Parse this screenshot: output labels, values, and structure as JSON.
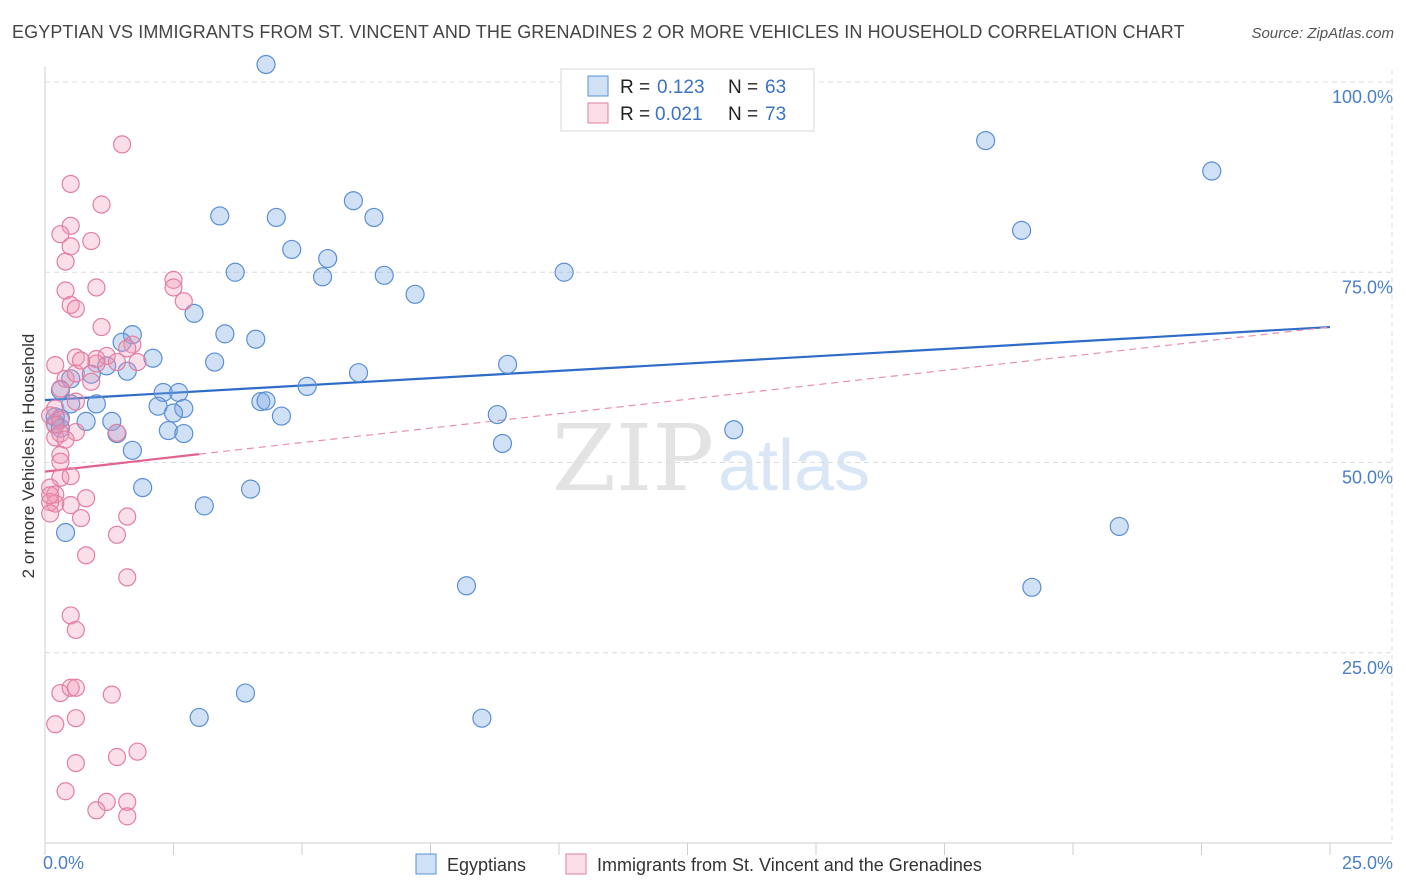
{
  "title": "EGYPTIAN VS IMMIGRANTS FROM ST. VINCENT AND THE GRENADINES 2 OR MORE VEHICLES IN HOUSEHOLD CORRELATION CHART",
  "source": "Source: ZipAtlas.com",
  "watermark": {
    "zip": "ZIP",
    "atlas": "atlas"
  },
  "chart_data": {
    "type": "scatter",
    "ylabel": "2 or more Vehicles in Household",
    "xlabel": "",
    "xlim": [
      0,
      25
    ],
    "ylim": [
      0,
      100
    ],
    "x_tick_labels": [
      "0.0%",
      "25.0%"
    ],
    "y_ticks": [
      25,
      50,
      75,
      100
    ],
    "y_tick_labels": [
      "25.0%",
      "50.0%",
      "75.0%",
      "100.0%"
    ],
    "legend_stats": [
      {
        "r_label": "R =",
        "r": "0.123",
        "n_label": "N =",
        "n": "63"
      },
      {
        "r_label": "R =",
        "r": "0.021",
        "n_label": "N =",
        "n": "73"
      }
    ],
    "series": [
      {
        "name": "Egyptians",
        "color": "#5b8fd6",
        "trend": {
          "x0": 0.0,
          "y0": 58.2,
          "x1": 25.0,
          "y1": 67.8
        },
        "points": [
          [
            4.3,
            102.3
          ],
          [
            18.3,
            92.3
          ],
          [
            22.7,
            88.3
          ],
          [
            6.0,
            84.4
          ],
          [
            3.4,
            82.4
          ],
          [
            4.5,
            82.2
          ],
          [
            6.4,
            82.2
          ],
          [
            4.8,
            78.0
          ],
          [
            19.0,
            80.5
          ],
          [
            5.5,
            76.8
          ],
          [
            3.7,
            75.0
          ],
          [
            5.4,
            74.4
          ],
          [
            6.6,
            74.6
          ],
          [
            10.1,
            75.0
          ],
          [
            7.2,
            72.1
          ],
          [
            2.9,
            69.6
          ],
          [
            1.7,
            66.8
          ],
          [
            3.5,
            66.9
          ],
          [
            4.1,
            66.2
          ],
          [
            1.5,
            65.8
          ],
          [
            2.1,
            63.7
          ],
          [
            3.3,
            63.2
          ],
          [
            9.0,
            62.9
          ],
          [
            1.2,
            62.7
          ],
          [
            0.9,
            61.6
          ],
          [
            1.6,
            62.0
          ],
          [
            6.1,
            61.8
          ],
          [
            0.5,
            61.0
          ],
          [
            5.1,
            60.0
          ],
          [
            0.3,
            59.5
          ],
          [
            2.3,
            59.2
          ],
          [
            2.6,
            59.2
          ],
          [
            4.2,
            58.0
          ],
          [
            4.3,
            58.1
          ],
          [
            0.5,
            57.7
          ],
          [
            1.0,
            57.7
          ],
          [
            2.2,
            57.4
          ],
          [
            2.7,
            57.1
          ],
          [
            2.5,
            56.5
          ],
          [
            4.6,
            56.1
          ],
          [
            8.8,
            56.3
          ],
          [
            0.3,
            55.8
          ],
          [
            0.8,
            55.4
          ],
          [
            1.3,
            55.4
          ],
          [
            0.2,
            55.1
          ],
          [
            2.4,
            54.2
          ],
          [
            2.7,
            53.8
          ],
          [
            1.4,
            53.8
          ],
          [
            13.4,
            54.3
          ],
          [
            8.9,
            52.5
          ],
          [
            1.7,
            51.6
          ],
          [
            1.9,
            46.7
          ],
          [
            4.0,
            46.5
          ],
          [
            3.1,
            44.3
          ],
          [
            0.4,
            40.8
          ],
          [
            20.9,
            41.6
          ],
          [
            8.2,
            33.8
          ],
          [
            19.2,
            33.6
          ],
          [
            3.9,
            19.7
          ],
          [
            3.0,
            16.5
          ],
          [
            8.5,
            16.4
          ],
          [
            0.2,
            56.0
          ],
          [
            0.3,
            54.5
          ]
        ]
      },
      {
        "name": "Immigrants from St. Vincent and the Grenadines",
        "color": "#e37ea2",
        "trend": {
          "x0": 0.0,
          "y0": 48.8,
          "x1": 3.0,
          "y1": 51.1
        },
        "trend_ext": {
          "x0": 3.0,
          "y0": 51.1,
          "x1": 25.0,
          "y1": 67.8
        },
        "points": [
          [
            1.5,
            91.8
          ],
          [
            0.5,
            86.6
          ],
          [
            1.1,
            83.9
          ],
          [
            0.5,
            81.1
          ],
          [
            0.3,
            80.0
          ],
          [
            0.5,
            78.4
          ],
          [
            0.9,
            79.1
          ],
          [
            0.4,
            76.4
          ],
          [
            2.5,
            74.0
          ],
          [
            2.5,
            73.0
          ],
          [
            1.0,
            73.0
          ],
          [
            0.4,
            72.6
          ],
          [
            2.7,
            71.2
          ],
          [
            0.5,
            70.7
          ],
          [
            0.6,
            70.2
          ],
          [
            1.1,
            67.8
          ],
          [
            1.7,
            65.5
          ],
          [
            1.2,
            64.0
          ],
          [
            0.6,
            63.8
          ],
          [
            1.0,
            63.6
          ],
          [
            1.0,
            63.0
          ],
          [
            1.6,
            65.0
          ],
          [
            1.8,
            63.2
          ],
          [
            1.4,
            63.2
          ],
          [
            0.2,
            62.8
          ],
          [
            0.4,
            61.0
          ],
          [
            0.6,
            61.7
          ],
          [
            0.3,
            59.7
          ],
          [
            0.6,
            58.0
          ],
          [
            0.2,
            57.1
          ],
          [
            0.1,
            56.2
          ],
          [
            0.3,
            55.6
          ],
          [
            0.2,
            54.9
          ],
          [
            0.6,
            54.0
          ],
          [
            0.2,
            53.3
          ],
          [
            0.3,
            53.8
          ],
          [
            0.4,
            53.0
          ],
          [
            1.4,
            53.9
          ],
          [
            0.3,
            51.0
          ],
          [
            0.3,
            50.1
          ],
          [
            0.3,
            48.0
          ],
          [
            0.5,
            48.2
          ],
          [
            0.1,
            46.7
          ],
          [
            0.2,
            45.8
          ],
          [
            0.8,
            45.3
          ],
          [
            0.2,
            44.6
          ],
          [
            0.1,
            44.8
          ],
          [
            0.5,
            44.4
          ],
          [
            0.1,
            43.3
          ],
          [
            0.7,
            42.7
          ],
          [
            1.6,
            42.9
          ],
          [
            1.4,
            40.5
          ],
          [
            0.8,
            37.8
          ],
          [
            1.6,
            34.9
          ],
          [
            0.5,
            29.9
          ],
          [
            0.6,
            28.0
          ],
          [
            0.3,
            19.7
          ],
          [
            0.5,
            20.4
          ],
          [
            0.6,
            20.4
          ],
          [
            1.3,
            19.5
          ],
          [
            0.6,
            16.4
          ],
          [
            0.2,
            15.6
          ],
          [
            1.8,
            12.0
          ],
          [
            1.4,
            11.3
          ],
          [
            0.6,
            10.5
          ],
          [
            0.4,
            6.8
          ],
          [
            1.2,
            5.4
          ],
          [
            1.6,
            5.4
          ],
          [
            1.0,
            4.3
          ],
          [
            1.6,
            3.5
          ],
          [
            0.7,
            63.4
          ],
          [
            0.9,
            60.6
          ],
          [
            0.1,
            45.7
          ]
        ]
      }
    ]
  }
}
